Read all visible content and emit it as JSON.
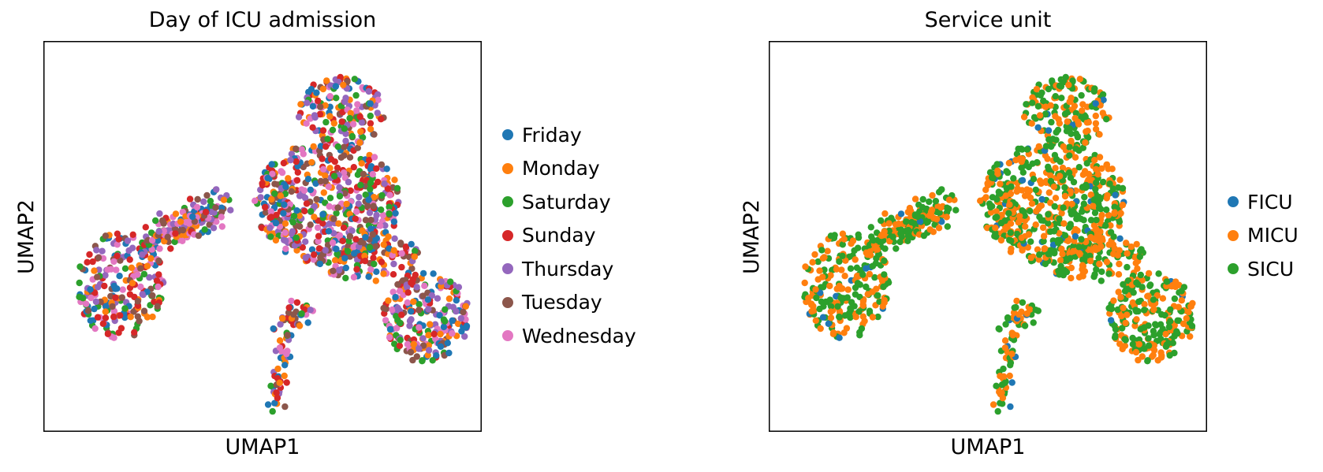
{
  "chart_data": [
    {
      "type": "scatter",
      "title": "Day of ICU admission",
      "xlabel": "UMAP1",
      "ylabel": "UMAP2",
      "xticks": [],
      "yticks": [],
      "grid": false,
      "legend_position": "right-outside",
      "series": [
        {
          "name": "Friday",
          "color": "#1f77b4"
        },
        {
          "name": "Monday",
          "color": "#ff7f0e"
        },
        {
          "name": "Saturday",
          "color": "#2ca02c"
        },
        {
          "name": "Sunday",
          "color": "#d62728"
        },
        {
          "name": "Thursday",
          "color": "#9467bd"
        },
        {
          "name": "Tuesday",
          "color": "#8c564b"
        },
        {
          "name": "Wednesday",
          "color": "#e377c2"
        }
      ]
    },
    {
      "type": "scatter",
      "title": "Service unit",
      "xlabel": "UMAP1",
      "ylabel": "UMAP2",
      "xticks": [],
      "yticks": [],
      "grid": false,
      "legend_position": "right-outside",
      "series": [
        {
          "name": "FICU",
          "color": "#1f77b4"
        },
        {
          "name": "MICU",
          "color": "#ff7f0e"
        },
        {
          "name": "SICU",
          "color": "#2ca02c"
        }
      ]
    }
  ]
}
